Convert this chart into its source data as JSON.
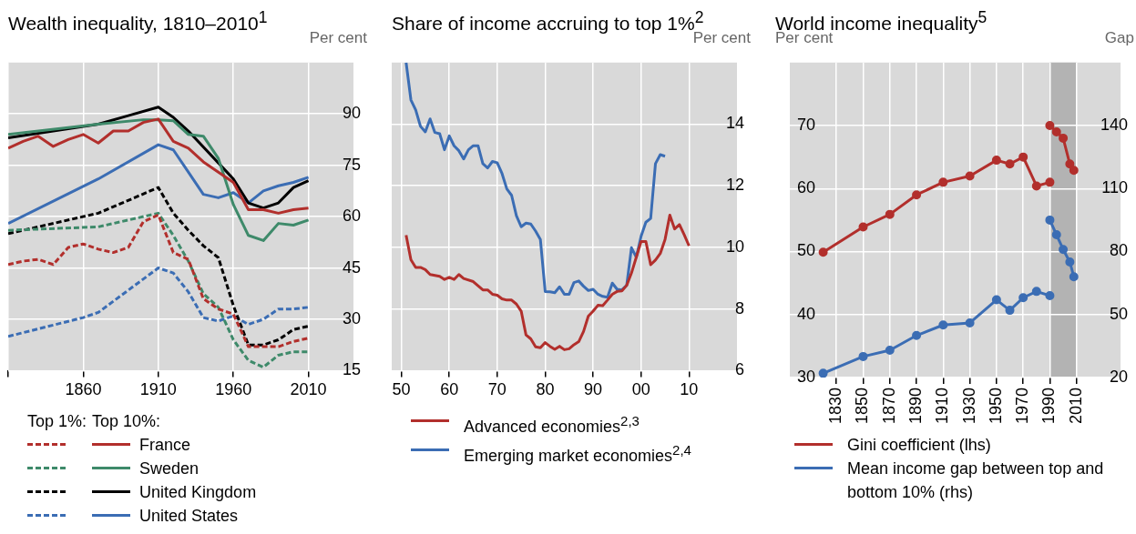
{
  "chart_data": [
    {
      "type": "line",
      "title": "Wealth inequality, 1810–2010$^{1}$",
      "ylabel": "Per cent",
      "annotations": [
        "Top 1%:",
        "Top 10%:"
      ],
      "xlim": [
        1810,
        2040
      ],
      "xticks": [
        {
          "value": 1810,
          "label": null
        },
        1860,
        1910,
        1960,
        2010
      ],
      "ylim": [
        15,
        105
      ],
      "yticks": [
        15,
        30,
        45,
        60,
        75,
        90
      ],
      "grid": true,
      "legend": "bottom",
      "marker": "none",
      "series": [
        {
          "color": "#b22f2c",
          "line_style": "dashed",
          "x": [
            1810,
            1820,
            1830,
            1840,
            1850,
            1860,
            1870,
            1880,
            1890,
            1900,
            1910,
            1920,
            1930,
            1940,
            1950,
            1960,
            1970,
            1980,
            1990,
            2000,
            2010
          ],
          "values": [
            46,
            47,
            47.5,
            46,
            51,
            52,
            50.5,
            49.5,
            51,
            58.5,
            60.5,
            49.5,
            47.5,
            36,
            33,
            31.5,
            22,
            22,
            22,
            23.5,
            24.5
          ]
        },
        {
          "color": "#3e8a6a",
          "line_style": "dashed",
          "x": [
            1810,
            1870,
            1910,
            1920,
            1930,
            1940,
            1950,
            1960,
            1970,
            1980,
            1990,
            2000,
            2010
          ],
          "values": [
            56,
            57,
            61,
            54.5,
            47,
            37.5,
            33.5,
            24,
            18,
            16,
            19.5,
            20.5,
            20.5
          ]
        },
        {
          "color": "#000000",
          "line_style": "dashed",
          "x": [
            1810,
            1870,
            1910,
            1920,
            1930,
            1940,
            1950,
            1960,
            1970,
            1980,
            1990,
            2000,
            2010
          ],
          "values": [
            55,
            61,
            68.5,
            61,
            56,
            51.5,
            48,
            34,
            22.5,
            22.5,
            24,
            27,
            28
          ]
        },
        {
          "color": "#3b6db4",
          "line_style": "dashed",
          "x": [
            1810,
            1860,
            1870,
            1910,
            1920,
            1930,
            1940,
            1950,
            1960,
            1970,
            1980,
            1990,
            2000,
            2010
          ],
          "values": [
            25,
            30.5,
            32,
            45,
            43.5,
            38,
            30.5,
            29.5,
            31,
            28.5,
            30,
            33,
            33,
            33.5
          ]
        },
        {
          "name": "France",
          "color": "#b22f2c",
          "line_style": "solid",
          "x": [
            1810,
            1820,
            1830,
            1840,
            1850,
            1860,
            1870,
            1880,
            1890,
            1900,
            1910,
            1920,
            1930,
            1940,
            1950,
            1960,
            1970,
            1980,
            1990,
            2000,
            2010
          ],
          "values": [
            80,
            82,
            83.5,
            80.5,
            82.5,
            84,
            81.5,
            85,
            85,
            87.5,
            88.5,
            82,
            80,
            76,
            73,
            70,
            62,
            62,
            61,
            62,
            62.5
          ]
        },
        {
          "name": "Sweden",
          "color": "#3e8a6a",
          "line_style": "solid",
          "x": [
            1810,
            1870,
            1900,
            1910,
            1920,
            1930,
            1940,
            1950,
            1960,
            1970,
            1980,
            1990,
            2000,
            2010
          ],
          "values": [
            84,
            87,
            88.3,
            88.3,
            88,
            84,
            83.5,
            77,
            63.5,
            54.5,
            53,
            58,
            57.5,
            59
          ]
        },
        {
          "name": "United Kingdom",
          "color": "#000000",
          "line_style": "solid",
          "x": [
            1810,
            1870,
            1890,
            1910,
            1920,
            1930,
            1960,
            1970,
            1980,
            1990,
            2000,
            2010
          ],
          "values": [
            83,
            87,
            89.5,
            92,
            89,
            85,
            71,
            64,
            62.5,
            64,
            68.5,
            70.5
          ]
        },
        {
          "name": "United States",
          "color": "#3b6db4",
          "line_style": "solid",
          "x": [
            1810,
            1870,
            1910,
            1920,
            1930,
            1940,
            1950,
            1960,
            1970,
            1980,
            1990,
            2000,
            2010
          ],
          "values": [
            58,
            71,
            81,
            79.5,
            73,
            66.5,
            65.5,
            67,
            64,
            67.5,
            69,
            70,
            71.5
          ]
        }
      ]
    },
    {
      "type": "line",
      "title": "Share of income accruing to top 1%$^{2}$",
      "ylabel": "Per cent",
      "xlim": [
        1948,
        2020
      ],
      "xticks": [
        {
          "value": 1950,
          "label": "50"
        },
        {
          "value": 1960,
          "label": "60"
        },
        {
          "value": 1970,
          "label": "70"
        },
        {
          "value": 1980,
          "label": "80"
        },
        {
          "value": 1990,
          "label": "90"
        },
        {
          "value": 2000,
          "label": "00"
        },
        {
          "value": 2010,
          "label": "10"
        }
      ],
      "ylim": [
        6,
        16
      ],
      "yticks": [
        6,
        8,
        10,
        12,
        14
      ],
      "grid": true,
      "legend": "bottom",
      "marker": "none",
      "series": [
        {
          "name": "Advanced economies$^{2,3}$",
          "color": "#b22f2c",
          "x": [
            1951,
            1952,
            1953,
            1954,
            1955,
            1956,
            1958,
            1959,
            1960,
            1961,
            1962,
            1963,
            1965,
            1967,
            1968,
            1969,
            1970,
            1971,
            1972,
            1973,
            1974,
            1975,
            1976,
            1977,
            1978,
            1979,
            1980,
            1981,
            1982,
            1983,
            1984,
            1985,
            1986,
            1987,
            1988,
            1989,
            1990,
            1991,
            1992,
            1993,
            1994,
            1995,
            1996,
            1997,
            1998,
            1999,
            2000,
            2001,
            2002,
            2003,
            2004,
            2005,
            2006,
            2007,
            2008,
            2009,
            2010
          ],
          "values": [
            10.4,
            9.6,
            9.35,
            9.35,
            9.28,
            9.12,
            9.06,
            8.96,
            9.03,
            8.96,
            9.12,
            8.99,
            8.89,
            8.62,
            8.62,
            8.48,
            8.45,
            8.33,
            8.29,
            8.29,
            8.16,
            7.93,
            7.16,
            7.03,
            6.77,
            6.74,
            6.91,
            6.79,
            6.69,
            6.79,
            6.68,
            6.71,
            6.84,
            6.94,
            7.27,
            7.77,
            7.93,
            8.12,
            8.11,
            8.29,
            8.48,
            8.57,
            8.59,
            8.77,
            9.17,
            9.68,
            10.19,
            10.19,
            9.44,
            9.59,
            9.8,
            10.26,
            11.05,
            10.6,
            10.74,
            10.41,
            10.05
          ]
        },
        {
          "name": "Emerging market economies$^{2,4}$",
          "color": "#3b6db4",
          "x": [
            1951,
            1952,
            1953,
            1954,
            1955,
            1956,
            1957,
            1958,
            1959,
            1960,
            1961,
            1962,
            1963,
            1964,
            1965,
            1966,
            1967,
            1968,
            1969,
            1970,
            1971,
            1972,
            1973,
            1974,
            1975,
            1976,
            1977,
            1978,
            1979,
            1980,
            1981,
            1982,
            1983,
            1984,
            1985,
            1986,
            1987,
            1988,
            1989,
            1990,
            1991,
            1992,
            1993,
            1994,
            1995,
            1996,
            1997,
            1998,
            1999,
            2000,
            2001,
            2002,
            2003,
            2004,
            2005
          ],
          "values": [
            16,
            14.79,
            14.46,
            13.93,
            13.75,
            14.17,
            13.73,
            13.69,
            13.17,
            13.62,
            13.3,
            13.14,
            12.87,
            13.17,
            13.3,
            13.3,
            12.72,
            12.58,
            12.79,
            12.75,
            12.4,
            11.9,
            11.69,
            11.03,
            10.67,
            10.79,
            10.76,
            10.53,
            10.26,
            8.57,
            8.56,
            8.53,
            8.72,
            8.48,
            8.48,
            8.86,
            8.91,
            8.74,
            8.6,
            8.64,
            8.48,
            8.41,
            8.38,
            8.84,
            8.64,
            8.62,
            8.77,
            9.99,
            9.68,
            10.36,
            10.82,
            10.94,
            12.72,
            13.01,
            12.96
          ]
        }
      ]
    },
    {
      "type": "line",
      "title": "World income inequality$^{5}$",
      "ylabel": "Per cent",
      "y2label": "Gap",
      "xlim": [
        1795,
        2043
      ],
      "xticks": [
        1830,
        1850,
        1870,
        1890,
        1910,
        1930,
        1950,
        1970,
        1990,
        2010
      ],
      "ylim": [
        30,
        80
      ],
      "yticks": [
        30,
        40,
        50,
        60,
        70
      ],
      "y2lim": [
        20,
        170
      ],
      "y2ticks": [
        20,
        50,
        80,
        110,
        140
      ],
      "grid": true,
      "legend": "bottom",
      "marker": "circle",
      "bands": [
        {
          "axis": "x",
          "from": 1990,
          "to": 2010,
          "color": "#b3b3b3"
        }
      ],
      "series": [
        {
          "name": "Gini coefficient (lhs)",
          "color": "#b22f2c",
          "axis": "y",
          "x": [
            1820,
            1850,
            1870,
            1890,
            1910,
            1930,
            1950,
            1960,
            1970,
            1980,
            1990,
            null,
            1990,
            1995,
            2000,
            2005,
            2008
          ],
          "values": [
            49.9,
            53.9,
            55.9,
            59,
            61,
            62,
            64.5,
            63.9,
            65,
            60.4,
            61,
            null,
            70,
            69,
            68,
            63.9,
            62.9
          ]
        },
        {
          "name": "Mean income gap between top and bottom 10% (rhs)",
          "color": "#3b6db4",
          "axis": "y2",
          "x": [
            1820,
            1850,
            1870,
            1890,
            1910,
            1930,
            1950,
            1960,
            1970,
            1980,
            1990,
            null,
            1990,
            1995,
            2000,
            2005,
            2008
          ],
          "values": [
            22,
            30,
            33,
            40,
            45,
            46,
            57,
            52,
            58,
            61,
            59,
            null,
            95,
            88,
            81,
            75,
            68
          ]
        }
      ]
    }
  ]
}
